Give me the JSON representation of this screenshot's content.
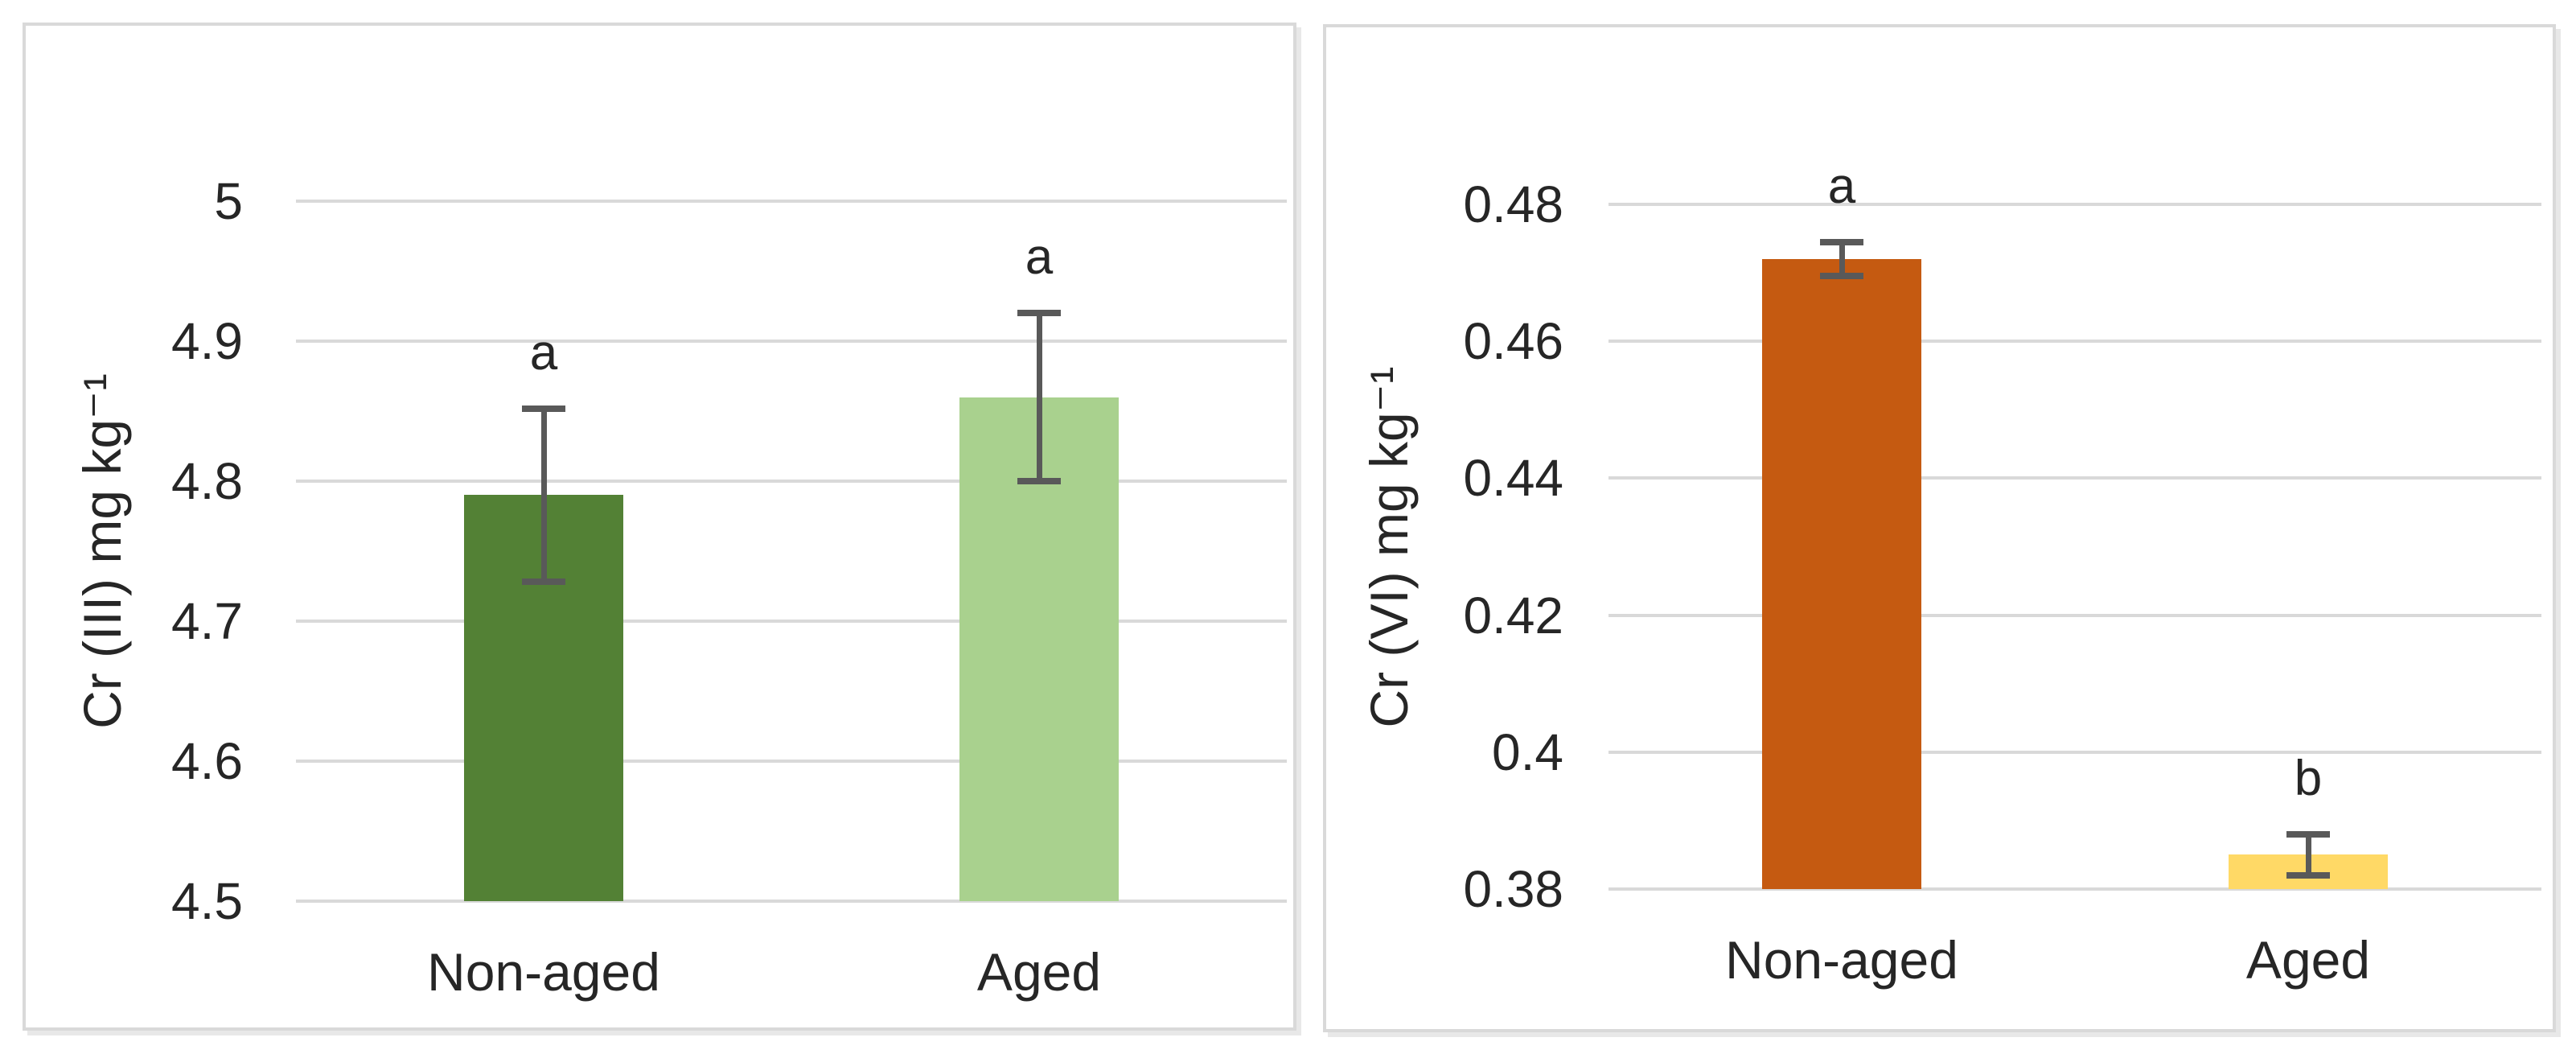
{
  "figure": {
    "background": "#ffffff",
    "panel_border_color": "#d9d9d9",
    "gridline_color": "#d9d9d9",
    "error_bar_color": "#595959",
    "text_color": "#262626"
  },
  "chart_data": [
    {
      "type": "bar",
      "title": "",
      "ylabel": "Cr (III) mg kg⁻¹",
      "xlabel": "",
      "categories": [
        "Non-aged",
        "Aged"
      ],
      "values": [
        4.79,
        4.86
      ],
      "errors": [
        0.062,
        0.06
      ],
      "letters": [
        "a",
        "a"
      ],
      "bar_colors": [
        "#538135",
        "#a9d18e"
      ],
      "ylim": [
        4.5,
        5.0
      ],
      "ytick_values": [
        5,
        4.9,
        4.8,
        4.7,
        4.6,
        4.5
      ],
      "ytick_labels": [
        "5",
        "4.9",
        "4.8",
        "4.7",
        "4.6",
        "4.5"
      ],
      "grid": true,
      "legend": "none"
    },
    {
      "type": "bar",
      "title": "",
      "ylabel": "Cr (VI) mg kg⁻¹",
      "xlabel": "",
      "categories": [
        "Non-aged",
        "Aged"
      ],
      "values": [
        0.472,
        0.385
      ],
      "errors": [
        0.0025,
        0.003
      ],
      "letters": [
        "a",
        "b"
      ],
      "bar_colors": [
        "#c55a11",
        "#ffd966"
      ],
      "ylim": [
        0.38,
        0.48
      ],
      "ytick_values": [
        0.48,
        0.46,
        0.44,
        0.42,
        0.4,
        0.38
      ],
      "ytick_labels": [
        "0.48",
        "0.46",
        "0.44",
        "0.42",
        "0.4",
        "0.38"
      ],
      "grid": true,
      "legend": "none"
    }
  ]
}
